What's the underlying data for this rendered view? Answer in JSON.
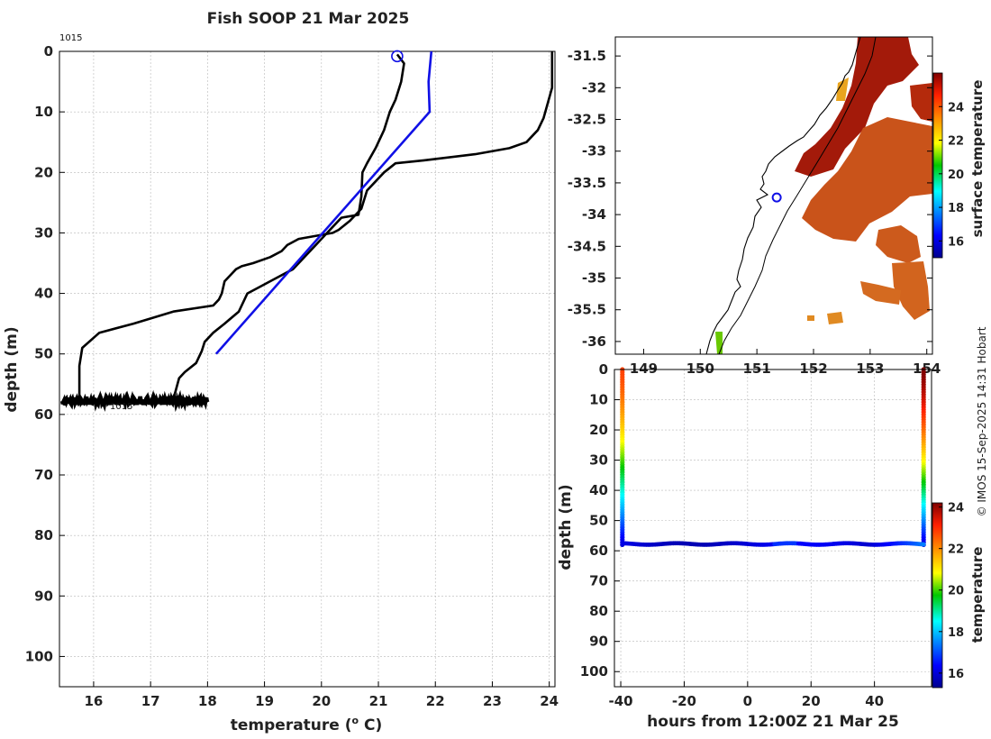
{
  "chart_data": [
    {
      "type": "line",
      "title": "Fish SOOP 21 Mar 2025",
      "xlabel": "temperature (",
      "xlabel_sup": "o",
      "xlabel_unit": " C)",
      "ylabel": "depth (m)",
      "xlim": [
        15.4,
        24.1
      ],
      "ylim": [
        105,
        0
      ],
      "xticks": [
        16,
        17,
        18,
        19,
        20,
        21,
        22,
        23,
        24
      ],
      "yticks": [
        0,
        10,
        20,
        30,
        40,
        50,
        60,
        70,
        80,
        90,
        100
      ],
      "annotations": [
        "1015",
        "1015"
      ],
      "series": [
        {
          "name": "profile-warm",
          "color": "#000000",
          "points": [
            [
              24.05,
              0
            ],
            [
              24.05,
              6
            ],
            [
              23.9,
              11
            ],
            [
              23.8,
              13
            ],
            [
              23.6,
              15
            ],
            [
              23.3,
              16
            ],
            [
              22.7,
              17
            ],
            [
              21.8,
              18
            ],
            [
              21.3,
              18.5
            ],
            [
              21.1,
              20
            ],
            [
              20.8,
              23
            ],
            [
              20.7,
              26
            ],
            [
              20.5,
              28
            ],
            [
              20.3,
              29.5
            ],
            [
              20.2,
              30
            ],
            [
              19.6,
              31
            ],
            [
              19.4,
              32
            ],
            [
              19.3,
              33
            ],
            [
              19.1,
              34
            ],
            [
              18.8,
              35
            ],
            [
              18.6,
              35.5
            ],
            [
              18.5,
              36
            ],
            [
              18.4,
              37
            ],
            [
              18.3,
              38
            ],
            [
              18.25,
              40
            ],
            [
              18.2,
              41
            ],
            [
              18.1,
              42
            ],
            [
              17.4,
              43
            ],
            [
              16.7,
              45
            ],
            [
              16.1,
              46.5
            ],
            [
              15.8,
              49
            ],
            [
              15.75,
              52
            ],
            [
              15.75,
              57.5
            ]
          ]
        },
        {
          "name": "profile-cool",
          "color": "#000000",
          "points": [
            [
              21.33,
              0.5
            ],
            [
              21.45,
              2
            ],
            [
              21.4,
              5
            ],
            [
              21.3,
              8
            ],
            [
              21.2,
              10
            ],
            [
              21.1,
              13
            ],
            [
              20.95,
              16
            ],
            [
              20.8,
              18.5
            ],
            [
              20.72,
              20
            ],
            [
              20.7,
              24
            ],
            [
              20.65,
              27
            ],
            [
              20.35,
              27.5
            ],
            [
              20.2,
              29
            ],
            [
              20.1,
              30
            ],
            [
              19.9,
              32
            ],
            [
              19.7,
              34
            ],
            [
              19.5,
              36
            ],
            [
              19.1,
              38
            ],
            [
              18.9,
              39
            ],
            [
              18.7,
              40
            ],
            [
              18.55,
              43
            ],
            [
              18.3,
              45
            ],
            [
              18.1,
              46.5
            ],
            [
              17.95,
              48
            ],
            [
              17.9,
              49.5
            ],
            [
              17.8,
              51.5
            ],
            [
              17.6,
              53
            ],
            [
              17.5,
              54
            ],
            [
              17.4,
              57.5
            ]
          ]
        },
        {
          "name": "profile-blue",
          "color": "#1010e6",
          "points": [
            [
              21.93,
              0
            ],
            [
              21.88,
              5
            ],
            [
              21.9,
              10
            ],
            [
              18.15,
              50
            ]
          ]
        }
      ],
      "scatter": {
        "name": "fish-depth-band",
        "depth": 57.8,
        "xmin": 15.45,
        "xmax": 18.0
      },
      "marker": {
        "x": 21.33,
        "y": 0.8,
        "color": "#1010e6"
      }
    },
    {
      "type": "heatmap",
      "name": "sst-map",
      "ylim": [
        -36.2,
        -31.2
      ],
      "xlim": [
        148.5,
        154.1
      ],
      "yticks": [
        -31.5,
        -32,
        -32.5,
        -33,
        -33.5,
        -34,
        -34.5,
        -35,
        -35.5,
        -36
      ],
      "xticks": [
        149,
        150,
        151,
        152,
        153,
        154
      ],
      "colorbar_label": "surface temperature",
      "colorbar_ticks": [
        16,
        18,
        20,
        22,
        24
      ],
      "colorbar_range": [
        15,
        26
      ],
      "marker": {
        "lon": 151.35,
        "lat": -33.73,
        "color": "#1010e6"
      }
    },
    {
      "type": "scatter",
      "name": "depth-time-section",
      "xlabel": "hours from 12:00Z 21 Mar 25",
      "ylabel": "depth (m)",
      "xlim": [
        -42,
        58
      ],
      "ylim": [
        105,
        0
      ],
      "xticks": [
        -40,
        -20,
        0,
        20,
        40
      ],
      "yticks": [
        0,
        10,
        20,
        30,
        40,
        50,
        60,
        70,
        80,
        90,
        100
      ],
      "colorbar_label": "temperature",
      "colorbar_ticks": [
        16,
        18,
        20,
        22,
        24
      ],
      "colorbar_range": [
        15.3,
        24.2
      ],
      "left_leg_hours": -39.5,
      "right_leg_hours": 55.5,
      "bottom_depth": 58.0,
      "left_surface_temp": 22.8,
      "right_surface_temp": 24.2,
      "bottom_temp": 16.0
    }
  ],
  "footer": {
    "credit": "© IMOS 15-Sep-2025 14:31 Hobart"
  }
}
